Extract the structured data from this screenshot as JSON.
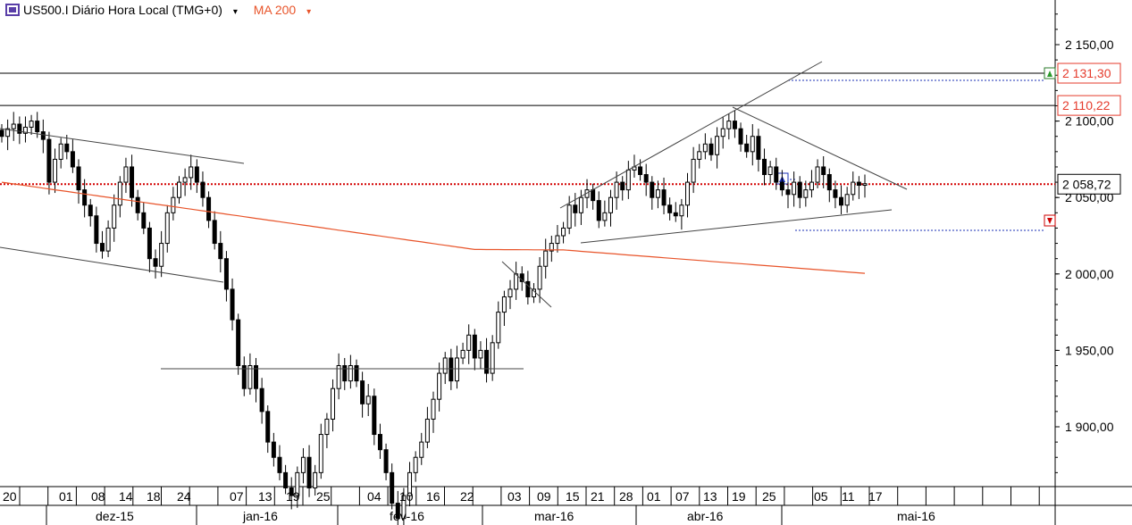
{
  "header": {
    "symbol": "US500.I Diário Hora Local (TMG+0)",
    "symbol_dropdown": "▾",
    "indicator": "MA 200",
    "indicator_dropdown": "▾",
    "logo_icon": "cfd-logo-icon"
  },
  "price_axis": {
    "ticks": [
      {
        "value": 2150,
        "label": "2 150,00"
      },
      {
        "value": 2100,
        "label": "2 100,00"
      },
      {
        "value": 2050,
        "label": "2 050,00"
      },
      {
        "value": 2000,
        "label": "2 000,00"
      },
      {
        "value": 1950,
        "label": "1 950,00"
      },
      {
        "value": 1900,
        "label": "1 900,00"
      }
    ],
    "markers": [
      {
        "value": 2131.3,
        "label": "2 131,30",
        "color": "#e53b2c",
        "kind": "buy-stop"
      },
      {
        "value": 2110.22,
        "label": "2 110,22",
        "color": "#e53b2c",
        "kind": "level"
      },
      {
        "value": 2058.72,
        "label": "2 058,72",
        "color": "#000000",
        "kind": "last"
      }
    ]
  },
  "time_axis": {
    "day_labels": [
      "20",
      "01",
      "08",
      "14",
      "18",
      "24",
      "07",
      "13",
      "19",
      "25",
      "04",
      "10",
      "16",
      "22",
      "03",
      "09",
      "15",
      "21",
      "28",
      "01",
      "07",
      "13",
      "19",
      "25",
      "05",
      "11",
      "17"
    ],
    "month_labels": [
      "dez-15",
      "jan-16",
      "fev-16",
      "mar-16",
      "abr-16",
      "mai-16"
    ]
  },
  "colors": {
    "candle": "#000000",
    "ma": "#e8542a",
    "last_line": "#d40000",
    "order_line": "#1a2fb5",
    "grid_line": "#000000"
  },
  "chart_data": {
    "type": "candlestick",
    "title": "US500.I Diário Hora Local (TMG+0)",
    "indicator": "MA 200",
    "ylim": [
      1860,
      2180
    ],
    "last_price": 2058.72,
    "horizontal_levels": [
      2131.3,
      2110.22
    ],
    "candles_close_approx": [
      2090,
      2095,
      2098,
      2092,
      2096,
      2100,
      2093,
      2088,
      2060,
      2075,
      2085,
      2080,
      2070,
      2055,
      2045,
      2038,
      2020,
      2015,
      2030,
      2045,
      2060,
      2070,
      2050,
      2040,
      2030,
      2010,
      2005,
      2020,
      2040,
      2050,
      2060,
      2063,
      2070,
      2060,
      2050,
      2035,
      2020,
      2010,
      1990,
      1970,
      1940,
      1925,
      1940,
      1925,
      1910,
      1890,
      1880,
      1870,
      1860,
      1855,
      1870,
      1880,
      1860,
      1870,
      1895,
      1905,
      1925,
      1940,
      1930,
      1940,
      1930,
      1915,
      1920,
      1895,
      1885,
      1870,
      1850,
      1840,
      1855,
      1870,
      1880,
      1890,
      1905,
      1918,
      1935,
      1945,
      1930,
      1945,
      1950,
      1960,
      1945,
      1950,
      1935,
      1955,
      1975,
      1985,
      1990,
      2000,
      1995,
      1985,
      1990,
      2005,
      2015,
      2020,
      2025,
      2030,
      2045,
      2040,
      2050,
      2055,
      2048,
      2035,
      2040,
      2050,
      2060,
      2055,
      2068,
      2070,
      2065,
      2060,
      2050,
      2055,
      2045,
      2040,
      2038,
      2045,
      2060,
      2075,
      2080,
      2085,
      2078,
      2090,
      2095,
      2100,
      2095,
      2085,
      2080,
      2090,
      2075,
      2065,
      2070,
      2060,
      2055,
      2052,
      2060,
      2050,
      2055,
      2060,
      2070,
      2065,
      2055,
      2050,
      2045,
      2052,
      2060,
      2058,
      2059
    ]
  }
}
